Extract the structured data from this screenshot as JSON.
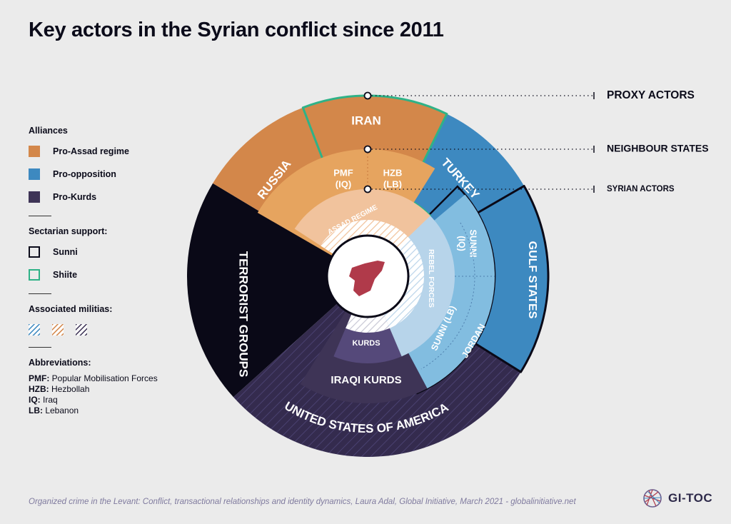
{
  "title": "Key actors in the Syrian conflict since 2011",
  "legend": {
    "alliances_heading": "Alliances",
    "alliances": [
      {
        "label": "Pro-Assad regime",
        "color": "#d3874a"
      },
      {
        "label": "Pro-opposition",
        "color": "#3d89c0"
      },
      {
        "label": "Pro-Kurds",
        "color": "#3e3456"
      }
    ],
    "sectarian_heading": "Sectarian support:",
    "sectarian": [
      {
        "label": "Sunni",
        "border": "#0b0b1a"
      },
      {
        "label": "Shiite",
        "border": "#2fb287"
      }
    ],
    "militias_heading": "Associated militias:",
    "abbreviations_heading": "Abbreviations:",
    "abbreviations": [
      {
        "key": "PMF:",
        "value": " Popular Mobilisation Forces"
      },
      {
        "key": "HZB:",
        "value": " Hezbollah"
      },
      {
        "key": "IQ:",
        "value": " Iraq"
      },
      {
        "key": "LB:",
        "value": " Lebanon"
      }
    ]
  },
  "rings": {
    "proxy": "PROXY ACTORS",
    "neighbour": "NEIGHBOUR STATES",
    "syrian": "SYRIAN ACTORS"
  },
  "segments": {
    "iran": "IRAN",
    "russia": "RUSSIA",
    "turkey": "TURKEY",
    "gulf_states": "GULF STATES",
    "usa": "UNITED STATES OF AMERICA",
    "terrorist_groups": "TERRORIST GROUPS",
    "pmf": "PMF",
    "pmf_sub": "(IQ)",
    "hzb": "HZB",
    "hzb_sub": "(LB)",
    "assad_regime": "ASSAD REGIME",
    "rebel_forces": "REBEL FORCES",
    "sunni_iq": "SUNNI",
    "sunni_iq_sub": "(IQ)",
    "sunni_lb": "SUNNI (LB)",
    "jordan": "JORDAN",
    "kurds": "KURDS",
    "iraqi_kurds": "IRAQI KURDS"
  },
  "colors": {
    "pro_assad": "#d3874a",
    "pro_assad_mid": "#e6a45f",
    "pro_assad_light": "#f1c39d",
    "pro_opposition": "#3d89c0",
    "pro_opposition_mid": "#82bde0",
    "pro_opposition_light": "#b7d4ea",
    "pro_kurds": "#3e3456",
    "pro_kurds_usa": "#342b4e",
    "terrorist": "#0a0917",
    "shiite": "#2fb287",
    "syria": "#b03a4a"
  },
  "footer": "Organized crime in the Levant: Conflict, transactional relationships and identity dynamics, Laura Adal, Global Initiative, March 2021 - globalinitiative.net",
  "logo": "GI-TOC"
}
